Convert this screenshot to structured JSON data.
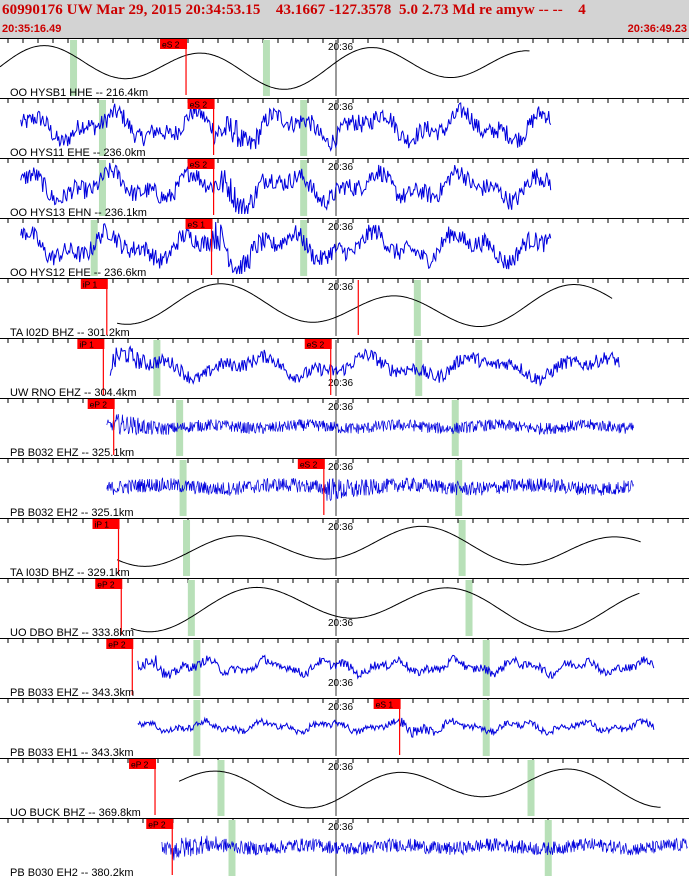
{
  "header": {
    "title": "60990176 UW Mar 29, 2015 20:34:53.15    43.1667 -127.3578  5.0 2.73 Md re amyw -- --    4",
    "start_time": "20:35:16.49",
    "end_time": "20:36:49.23"
  },
  "minute_label": "20:36",
  "colors": {
    "bg_header": "#d3d3d3",
    "title": "#cc0000",
    "pick": "#ff0000",
    "green_band": "#b8e0b8",
    "trace_blue": "#0000dd",
    "trace_black": "#000000"
  },
  "traces": [
    {
      "label": "OO HYSB1 HHE -- 216.4km",
      "color": "black",
      "style": "smooth",
      "start": 0.0,
      "end": 0.77,
      "amp": 0.35,
      "period": 26,
      "minute_label_pos": "top",
      "picks": [
        {
          "label": "eS 2",
          "x": 0.27
        }
      ],
      "green": [
        0.106,
        0.386
      ]
    },
    {
      "label": "OO HYS11 EHE -- 236.0km",
      "color": "blue",
      "style": "noisy",
      "start": 0.03,
      "end": 0.8,
      "amp": 0.33,
      "period": 14,
      "minute_label_pos": "top",
      "picks": [
        {
          "label": "eS 2",
          "x": 0.31
        }
      ],
      "green": [
        0.148,
        0.44
      ]
    },
    {
      "label": "OO HYS13 EHN -- 236.1km",
      "color": "blue",
      "style": "noisy",
      "start": 0.03,
      "end": 0.8,
      "amp": 0.33,
      "period": 14,
      "minute_label_pos": "top",
      "picks": [
        {
          "label": "eS 2",
          "x": 0.31
        }
      ],
      "green": [
        0.148,
        0.44
      ]
    },
    {
      "label": "OO HYS12 EHE -- 236.6km",
      "color": "blue",
      "style": "noisy",
      "start": 0.03,
      "end": 0.8,
      "amp": 0.33,
      "period": 14,
      "minute_label_pos": "top",
      "picks": [
        {
          "label": "eS 1",
          "x": 0.307
        }
      ],
      "green": [
        0.136,
        0.44
      ]
    },
    {
      "label": "TA I02D BHZ -- 301.2km",
      "color": "black",
      "style": "smooth",
      "start": 0.17,
      "end": 0.89,
      "amp": 0.35,
      "period": 28,
      "minute_label_pos": "top",
      "picks": [
        {
          "label": "iP 1",
          "x": 0.155
        },
        {
          "label": "",
          "x": 0.52
        }
      ],
      "green": [
        0.605
      ]
    },
    {
      "label": "UW RNO EHZ -- 304.4km",
      "color": "blue",
      "style": "noisy",
      "start": 0.16,
      "end": 0.9,
      "amp": 0.25,
      "period": 18,
      "minute_label_pos": "bottom",
      "picks": [
        {
          "label": "iP 1",
          "x": 0.15
        },
        {
          "label": "eS 2",
          "x": 0.48
        }
      ],
      "green": [
        0.227,
        0.607
      ]
    },
    {
      "label": "PB B032 EHZ -- 325.1km",
      "color": "blue",
      "style": "dense",
      "start": 0.155,
      "end": 0.92,
      "amp": 0.14,
      "period": 6,
      "minute_label_pos": "top",
      "picks": [
        {
          "label": "eP 2",
          "x": 0.165
        }
      ],
      "green": [
        0.26,
        0.66
      ]
    },
    {
      "label": "PB B032 EH2 -- 325.1km",
      "color": "blue",
      "style": "dense",
      "start": 0.155,
      "end": 0.92,
      "amp": 0.17,
      "period": 8,
      "minute_label_pos": "top",
      "picks": [
        {
          "label": "eS 2",
          "x": 0.47
        }
      ],
      "green": [
        0.265,
        0.665
      ]
    },
    {
      "label": "TA I03D BHZ -- 329.1km",
      "color": "black",
      "style": "smooth",
      "start": 0.17,
      "end": 0.93,
      "amp": 0.32,
      "period": 30,
      "minute_label_pos": "top",
      "picks": [
        {
          "label": "iP 1",
          "x": 0.172
        }
      ],
      "green": [
        0.27,
        0.67
      ]
    },
    {
      "label": "UO DBO BHZ -- 333.8km",
      "color": "black",
      "style": "smooth",
      "start": 0.19,
      "end": 0.93,
      "amp": 0.38,
      "period": 32,
      "minute_label_pos": "bottom",
      "picks": [
        {
          "label": "eP 2",
          "x": 0.176
        }
      ],
      "green": [
        0.277,
        0.68
      ]
    },
    {
      "label": "PB B033 EHZ -- 343.3km",
      "color": "blue",
      "style": "noisy",
      "start": 0.2,
      "end": 0.95,
      "amp": 0.16,
      "period": 10,
      "minute_label_pos": "bottom",
      "picks": [
        {
          "label": "eP 2",
          "x": 0.192
        }
      ],
      "green": [
        0.285,
        0.705
      ]
    },
    {
      "label": "PB B033 EH1 -- 343.3km",
      "color": "blue",
      "style": "noisy",
      "start": 0.2,
      "end": 0.95,
      "amp": 0.12,
      "period": 10,
      "minute_label_pos": "top",
      "picks": [
        {
          "label": "eS 1",
          "x": 0.58
        }
      ],
      "green": [
        0.285,
        0.705
      ]
    },
    {
      "label": "UO BUCK BHZ -- 369.8km",
      "color": "black",
      "style": "smooth",
      "start": 0.26,
      "end": 0.96,
      "amp": 0.32,
      "period": 28,
      "minute_label_pos": "top",
      "picks": [
        {
          "label": "eP 2",
          "x": 0.225
        }
      ],
      "green": [
        0.32,
        0.77
      ]
    },
    {
      "label": "PB B030 EH2 -- 380.2km",
      "color": "blue",
      "style": "dense",
      "start": 0.235,
      "end": 1.0,
      "amp": 0.16,
      "period": 6,
      "minute_label_pos": "top",
      "picks": [
        {
          "label": "eP 2",
          "x": 0.25
        }
      ],
      "green": [
        0.336,
        0.795
      ]
    }
  ]
}
